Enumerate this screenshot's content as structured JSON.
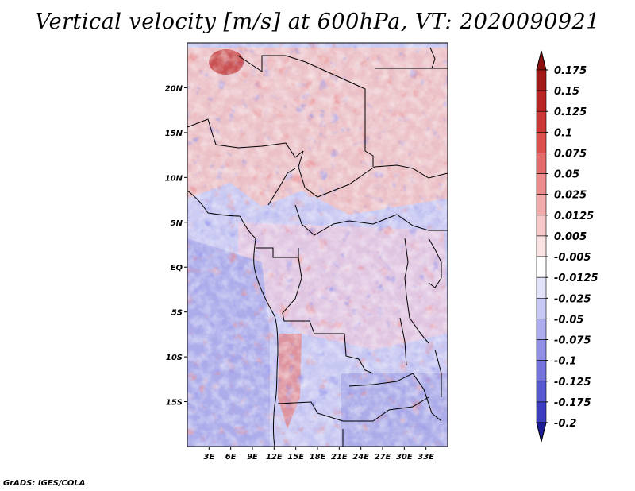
{
  "title": "Vertical velocity [m/s] at 600hPa, VT: 2020090921",
  "credit": "GrADS: IGES/COLA",
  "map": {
    "lon_range": [
      0,
      36
    ],
    "lat_range": [
      -20,
      25
    ],
    "lon_ticks": [
      {
        "value": 3,
        "label": "3E"
      },
      {
        "value": 6,
        "label": "6E"
      },
      {
        "value": 9,
        "label": "9E"
      },
      {
        "value": 12,
        "label": "12E"
      },
      {
        "value": 15,
        "label": "15E"
      },
      {
        "value": 18,
        "label": "18E"
      },
      {
        "value": 21,
        "label": "21E"
      },
      {
        "value": 24,
        "label": "24E"
      },
      {
        "value": 27,
        "label": "27E"
      },
      {
        "value": 30,
        "label": "30E"
      },
      {
        "value": 33,
        "label": "33E"
      }
    ],
    "lat_ticks": [
      {
        "value": 20,
        "label": "20N"
      },
      {
        "value": 15,
        "label": "15N"
      },
      {
        "value": 10,
        "label": "10N"
      },
      {
        "value": 5,
        "label": "5N"
      },
      {
        "value": 0,
        "label": "EQ"
      },
      {
        "value": -5,
        "label": "5S"
      },
      {
        "value": -10,
        "label": "10S"
      },
      {
        "value": -15,
        "label": "15S"
      }
    ]
  },
  "colorbar": {
    "levels": [
      {
        "label": "0.175",
        "color": "#a01818"
      },
      {
        "label": "0.15",
        "color": "#b82424"
      },
      {
        "label": "0.125",
        "color": "#cc3838"
      },
      {
        "label": "0.1",
        "color": "#dc5050"
      },
      {
        "label": "0.075",
        "color": "#e46c6c"
      },
      {
        "label": "0.05",
        "color": "#ec8c8c"
      },
      {
        "label": "0.025",
        "color": "#f2acac"
      },
      {
        "label": "0.0125",
        "color": "#f6c8c8"
      },
      {
        "label": "0.005",
        "color": "#fae2e2"
      },
      {
        "label": "-0.005",
        "color": "#ffffff"
      },
      {
        "label": "-0.0125",
        "color": "#e2e2fa"
      },
      {
        "label": "-0.025",
        "color": "#c8c8f4"
      },
      {
        "label": "-0.05",
        "color": "#acacee"
      },
      {
        "label": "-0.075",
        "color": "#9090e6"
      },
      {
        "label": "-0.1",
        "color": "#7474dc"
      },
      {
        "label": "-0.125",
        "color": "#5858d0"
      },
      {
        "label": "-0.175",
        "color": "#3c3cc0"
      },
      {
        "label": "-0.2",
        "color": "#2a2aae"
      }
    ],
    "top_color": "#8c1010",
    "bottom_color": "#1c1c96"
  }
}
